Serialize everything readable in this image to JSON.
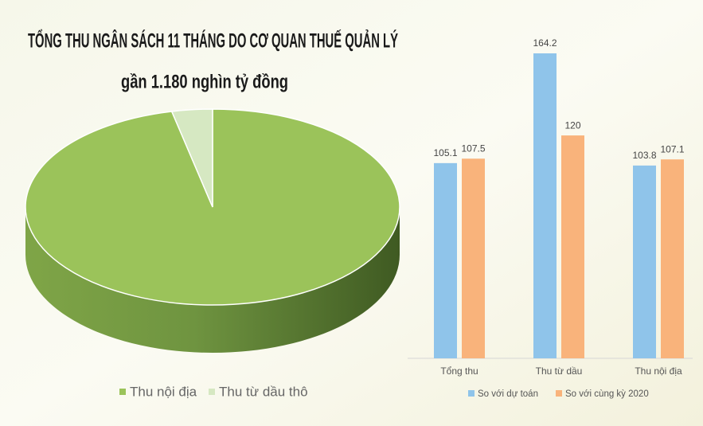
{
  "chart_data": [
    {
      "type": "pie",
      "title": "TỔNG THU NGÂN SÁCH 11 THÁNG DO CƠ QUAN THUẾ QUẢN LÝ",
      "subtitle": "gần 1.180 nghìn tỷ đồng",
      "categories": [
        "Thu nội địa",
        "Thu từ dầu thô"
      ],
      "values": [
        96.5,
        3.5
      ],
      "colors": [
        "#9bc35a",
        "#d6e8c2"
      ]
    },
    {
      "type": "bar",
      "categories": [
        "Tổng thu",
        "Thu từ dầu",
        "Thu nội địa"
      ],
      "series": [
        {
          "name": "So với dự toán",
          "color": "#8fc4ea",
          "values": [
            105.1,
            164.2,
            103.8
          ]
        },
        {
          "name": "So với cùng kỳ 2020",
          "color": "#f9b37b",
          "values": [
            107.5,
            120,
            107.1
          ]
        }
      ]
    }
  ]
}
